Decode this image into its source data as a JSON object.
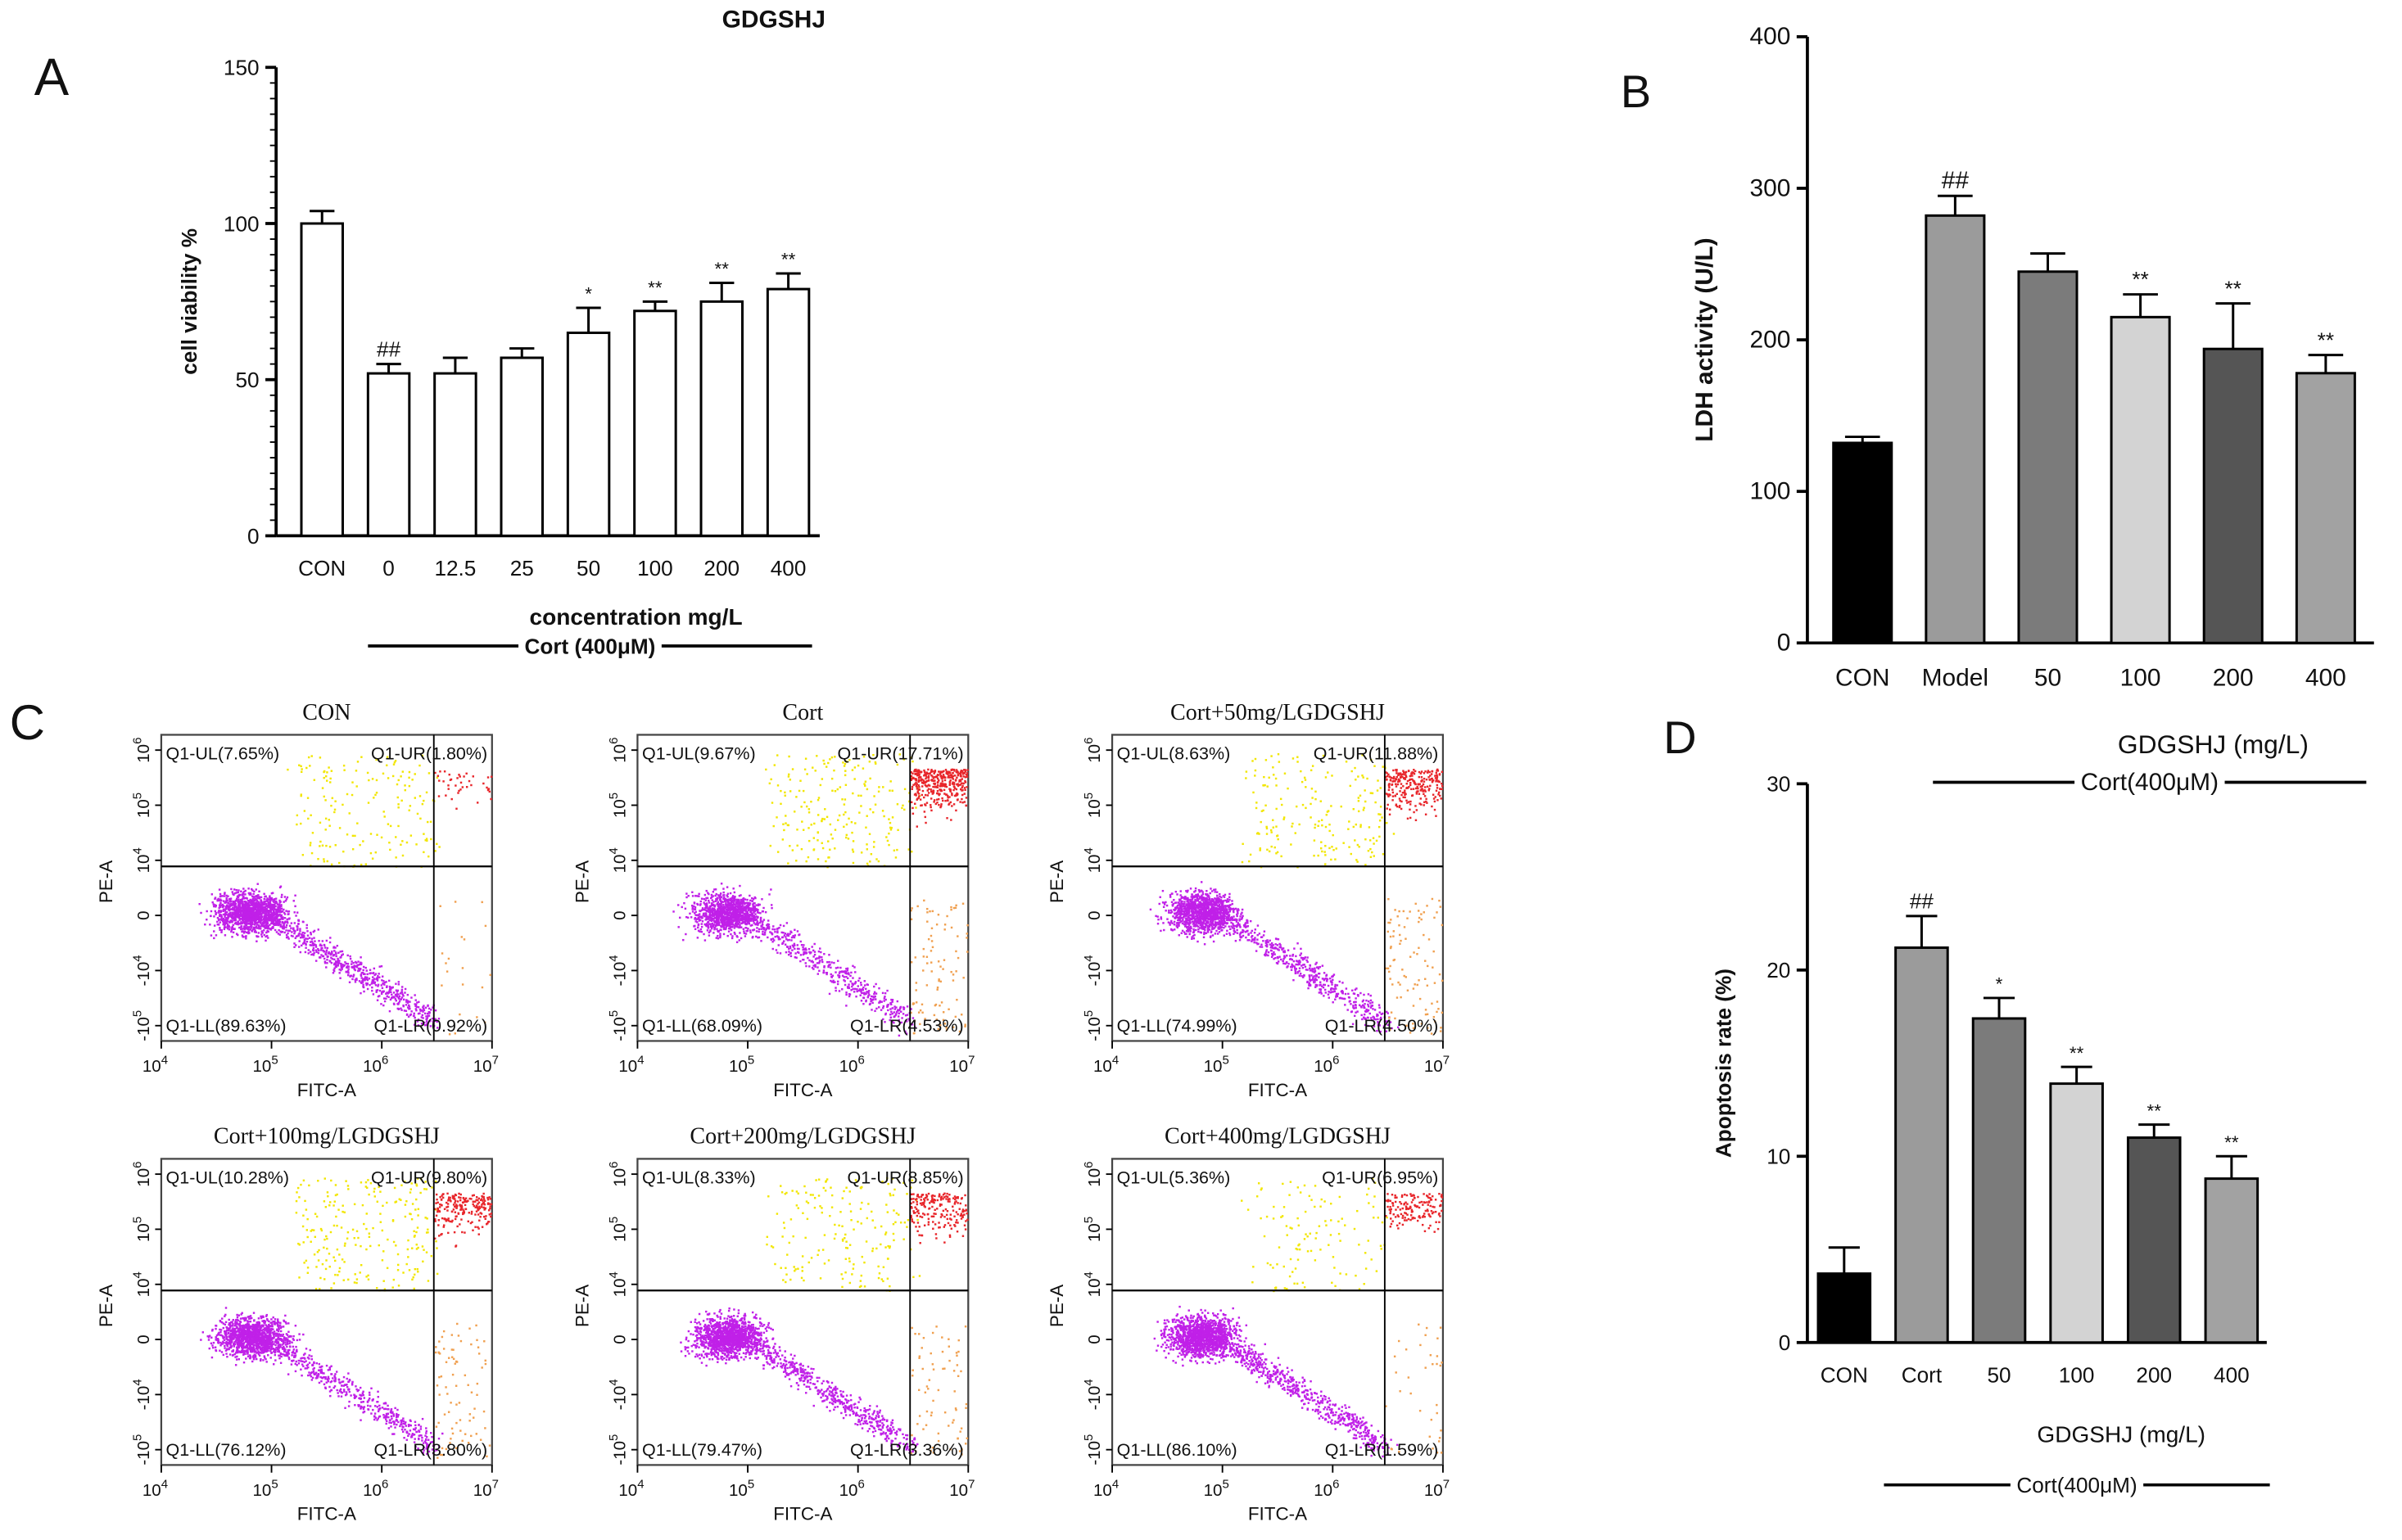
{
  "chart_data": [
    {
      "panel": "A",
      "type": "bar",
      "title": "GDGSHJ",
      "ylabel": "cell viability %",
      "xlabel": "concentration mg/L",
      "group_label": "Cort (400μM)",
      "categories": [
        "CON",
        "0",
        "12.5",
        "25",
        "50",
        "100",
        "200",
        "400"
      ],
      "values": [
        100,
        52,
        52,
        57,
        65,
        72,
        75,
        79
      ],
      "errors": [
        4,
        3,
        5,
        3,
        8,
        3,
        6,
        5
      ],
      "significance": [
        "",
        "##",
        "",
        "",
        "*",
        "**",
        "**",
        "**"
      ],
      "ylim": [
        0,
        150
      ],
      "yticks": [
        0,
        50,
        100,
        150
      ],
      "colors": [
        "#ffffff"
      ]
    },
    {
      "panel": "B",
      "type": "bar",
      "ylabel": "LDH  activity (U/L)",
      "xlabel": "GDGSHJ  (mg/L)",
      "group_label": "Cort(400μM)",
      "categories": [
        "CON",
        "Model",
        "50",
        "100",
        "200",
        "400"
      ],
      "values": [
        132,
        282,
        245,
        215,
        194,
        178
      ],
      "errors": [
        4,
        13,
        12,
        15,
        30,
        12
      ],
      "significance": [
        "",
        "##",
        "",
        "**",
        "**",
        "**"
      ],
      "ylim": [
        0,
        400
      ],
      "yticks": [
        0,
        100,
        200,
        300,
        400
      ],
      "colors": [
        "#000000",
        "#9b9b9b",
        "#7b7b7b",
        "#d3d3d3",
        "#555555",
        "#a2a2a2"
      ]
    },
    {
      "panel": "C",
      "type": "scatter",
      "xlabel": "FITC-A",
      "ylabel": "PE-A",
      "xticks": [
        "10^4",
        "10^5",
        "10^6",
        "10^7"
      ],
      "yticks": [
        "-10^5",
        "-10^4",
        "0",
        "10^4",
        "10^5",
        "10^6"
      ],
      "quadrant_colors": {
        "UL": "#f2e600",
        "UR": "#e8262b",
        "LL": "#c020e8",
        "LR": "#f0a050"
      },
      "plots": [
        {
          "title": "CON",
          "UL": "Q1-UL(7.65%)",
          "UR": "Q1-UR(1.80%)",
          "LL": "Q1-LL(89.63%)",
          "LR": "Q1-LR(0.92%)",
          "values": {
            "UL": 7.65,
            "UR": 1.8,
            "LL": 89.63,
            "LR": 0.92
          }
        },
        {
          "title": "Cort",
          "UL": "Q1-UL(9.67%)",
          "UR": "Q1-UR(17.71%)",
          "LL": "Q1-LL(68.09%)",
          "LR": "Q1-LR(4.53%)",
          "values": {
            "UL": 9.67,
            "UR": 17.71,
            "LL": 68.09,
            "LR": 4.53
          }
        },
        {
          "title": "Cort+50mg/LGDGSHJ",
          "UL": "Q1-UL(8.63%)",
          "UR": "Q1-UR(11.88%)",
          "LL": "Q1-LL(74.99%)",
          "LR": "Q1-LR(4.50%)",
          "values": {
            "UL": 8.63,
            "UR": 11.88,
            "LL": 74.99,
            "LR": 4.5
          }
        },
        {
          "title": "Cort+100mg/LGDGSHJ",
          "UL": "Q1-UL(10.28%)",
          "UR": "Q1-UR(9.80%)",
          "LL": "Q1-LL(76.12%)",
          "LR": "Q1-LR(3.80%)",
          "values": {
            "UL": 10.28,
            "UR": 9.8,
            "LL": 76.12,
            "LR": 3.8
          }
        },
        {
          "title": "Cort+200mg/LGDGSHJ",
          "UL": "Q1-UL(8.33%)",
          "UR": "Q1-UR(8.85%)",
          "LL": "Q1-LL(79.47%)",
          "LR": "Q1-LR(3.36%)",
          "values": {
            "UL": 8.33,
            "UR": 8.85,
            "LL": 79.47,
            "LR": 3.36
          }
        },
        {
          "title": "Cort+400mg/LGDGSHJ",
          "UL": "Q1-UL(5.36%)",
          "UR": "Q1-UR(6.95%)",
          "LL": "Q1-LL(86.10%)",
          "LR": "Q1-LR(1.59%)",
          "values": {
            "UL": 5.36,
            "UR": 6.95,
            "LL": 86.1,
            "LR": 1.59
          }
        }
      ]
    },
    {
      "panel": "D",
      "type": "bar",
      "ylabel": "Apoptosis rate (%)",
      "xlabel": "GDGSHJ (mg/L)",
      "group_label": "Cort(400μM)",
      "categories": [
        "CON",
        "Cort",
        "50",
        "100",
        "200",
        "400"
      ],
      "values": [
        3.7,
        21.2,
        17.4,
        13.9,
        11.0,
        8.8
      ],
      "errors": [
        1.4,
        1.7,
        1.1,
        0.9,
        0.7,
        1.2
      ],
      "significance": [
        "",
        "##",
        "*",
        "**",
        "**",
        "**"
      ],
      "ylim": [
        0,
        30
      ],
      "yticks": [
        0,
        10,
        20,
        30
      ],
      "colors": [
        "#000000",
        "#9b9b9b",
        "#7b7b7b",
        "#d3d3d3",
        "#555555",
        "#a2a2a2"
      ]
    }
  ]
}
